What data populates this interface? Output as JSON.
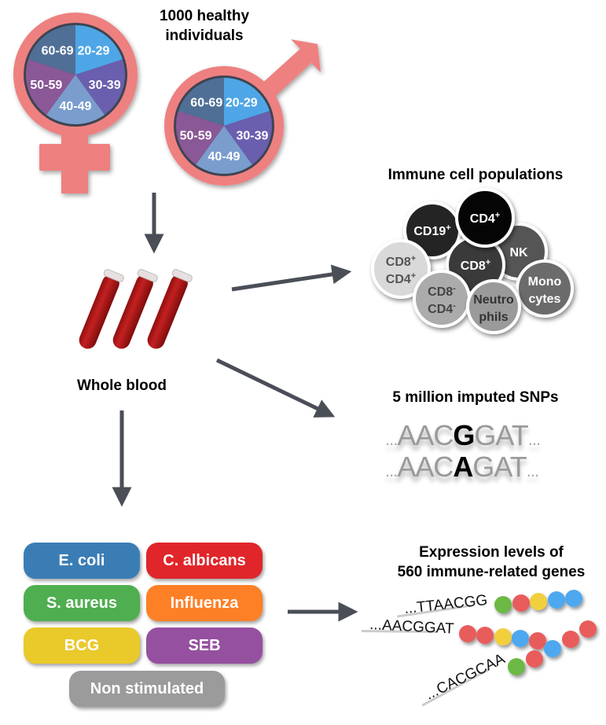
{
  "cohort": {
    "title_line1": "1000 healthy",
    "title_line2": "individuals",
    "age_groups": [
      "20-29",
      "30-39",
      "40-49",
      "50-59",
      "60-69"
    ],
    "age_colors": [
      "#4ea6e6",
      "#6a5eae",
      "#7a9dcd",
      "#8a5896",
      "#506f96"
    ],
    "symbol_color": "#ee8080",
    "symbols": [
      "female-symbol",
      "male-symbol"
    ]
  },
  "blood": {
    "label": "Whole blood"
  },
  "immune": {
    "title": "Immune cell populations",
    "cells": [
      {
        "l1": "CD19",
        "s1": "+",
        "l2": "",
        "s2": "",
        "fill": "#242424",
        "text": "#ffffff"
      },
      {
        "l1": "NK",
        "s1": "",
        "l2": "",
        "s2": "",
        "fill": "#555555",
        "text": "#ffffff"
      },
      {
        "l1": "CD8",
        "s1": "+",
        "l2": "",
        "s2": "",
        "fill": "#3a3a3a",
        "text": "#ffffff"
      },
      {
        "l1": "CD4",
        "s1": "+",
        "l2": "",
        "s2": "",
        "fill": "#050505",
        "text": "#ffffff"
      },
      {
        "l1": "CD8",
        "s1": "+",
        "l2": "CD4",
        "s2": "+",
        "fill": "#d9d9d9",
        "text": "#555555"
      },
      {
        "l1": "Mono",
        "s1": "",
        "l2": "cytes",
        "s2": "",
        "fill": "#6b6b6b",
        "text": "#ffffff"
      },
      {
        "l1": "CD8",
        "s1": "-",
        "l2": "CD4",
        "s2": "-",
        "fill": "#ababab",
        "text": "#444444"
      },
      {
        "l1": "Neutro",
        "s1": "",
        "l2": "phils",
        "s2": "",
        "fill": "#9a9a9a",
        "text": "#333333"
      }
    ]
  },
  "snps": {
    "title": "5 million imputed SNPs",
    "seq1": {
      "prefix": "...",
      "before": "AAC",
      "variant": "G",
      "after": "GAT",
      "suffix": "..."
    },
    "seq2": {
      "prefix": "...",
      "before": "AAC",
      "variant": "A",
      "after": "GAT",
      "suffix": "..."
    }
  },
  "stimuli": [
    {
      "label": "E. coli",
      "color": "#3a7db5"
    },
    {
      "label": "C. albicans",
      "color": "#e0262a"
    },
    {
      "label": "S. aureus",
      "color": "#4fae4f"
    },
    {
      "label": "Influenza",
      "color": "#fd8026"
    },
    {
      "label": "BCG",
      "color": "#eac92a"
    },
    {
      "label": "SEB",
      "color": "#9650a0"
    },
    {
      "label": "Non stimulated",
      "color": "#9b9b9b"
    }
  ],
  "expression": {
    "title_line1": "Expression levels of",
    "title_line2": "560 immune-related genes",
    "probes": [
      {
        "seq": "...TTAACGG",
        "beads": [
          "#6cb944",
          "#e85c5c",
          "#f2cf3c",
          "#4ea8f0",
          "#4ea8f0"
        ]
      },
      {
        "seq": "...AACGGAT",
        "beads": [
          "#e85c5c",
          "#e85c5c",
          "#f2cf3c",
          "#4ea8f0",
          "#e85c5c"
        ]
      },
      {
        "seq": "...CACGCAA",
        "beads": [
          "#6cb944",
          "#e85c5c",
          "#4ea8f0",
          "#e85c5c",
          "#e85c5c"
        ]
      }
    ]
  },
  "arrow_color": "#4a4e57"
}
